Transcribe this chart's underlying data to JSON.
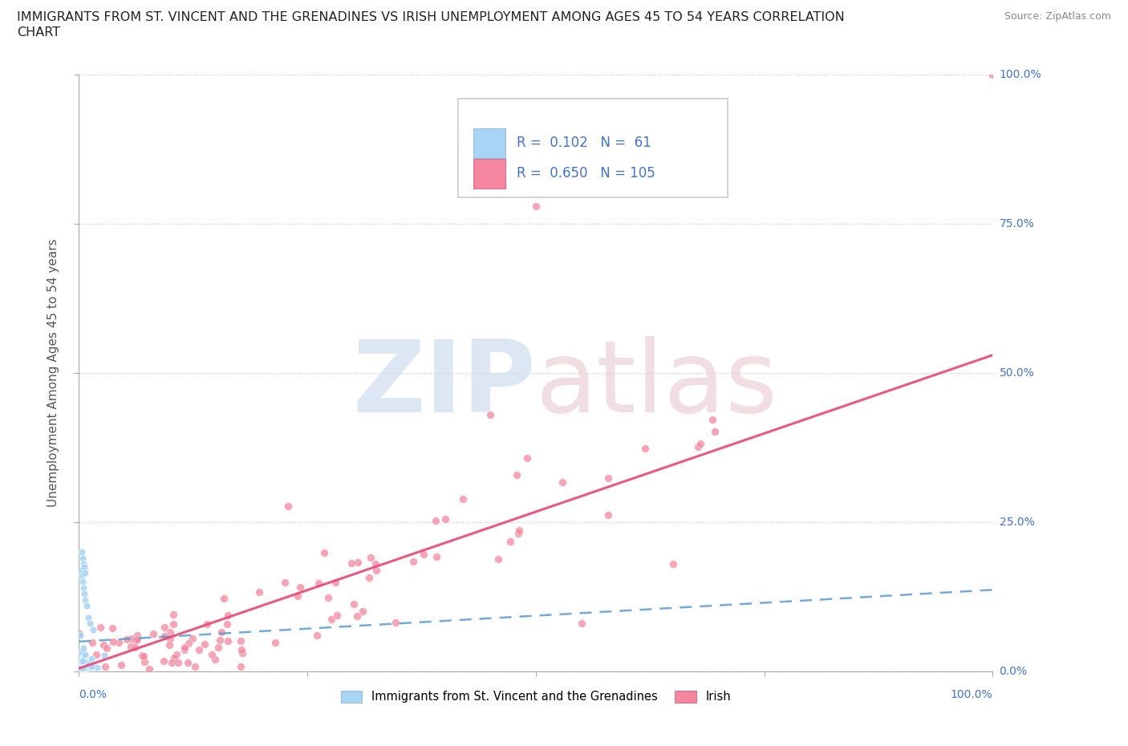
{
  "title_line1": "IMMIGRANTS FROM ST. VINCENT AND THE GRENADINES VS IRISH UNEMPLOYMENT AMONG AGES 45 TO 54 YEARS CORRELATION",
  "title_line2": "CHART",
  "source": "Source: ZipAtlas.com",
  "ylabel": "Unemployment Among Ages 45 to 54 years",
  "xlabels": [
    "0.0%",
    "100.0%"
  ],
  "ylabels": [
    "0.0%",
    "25.0%",
    "50.0%",
    "75.0%",
    "100.0%"
  ],
  "yticks": [
    0.0,
    0.25,
    0.5,
    0.75,
    1.0
  ],
  "legend_entries": [
    {
      "label": "Immigrants from St. Vincent and the Grenadines",
      "color": "#a8d4f5",
      "R": 0.102,
      "N": 61
    },
    {
      "label": "Irish",
      "color": "#f4879f",
      "R": 0.65,
      "N": 105
    }
  ],
  "blue_dot_color": "#a8d4f5",
  "pink_dot_color": "#f4879f",
  "blue_line_color": "#5b9bd5",
  "pink_line_color": "#e8507a",
  "text_color": "#4472c4",
  "watermark_zip_color": "#c5d8ec",
  "watermark_atlas_color": "#e8c8d0",
  "background_color": "#ffffff",
  "grid_color": "#cccccc",
  "legend_text_color": "#4472c4",
  "axis_label_color": "#555555"
}
